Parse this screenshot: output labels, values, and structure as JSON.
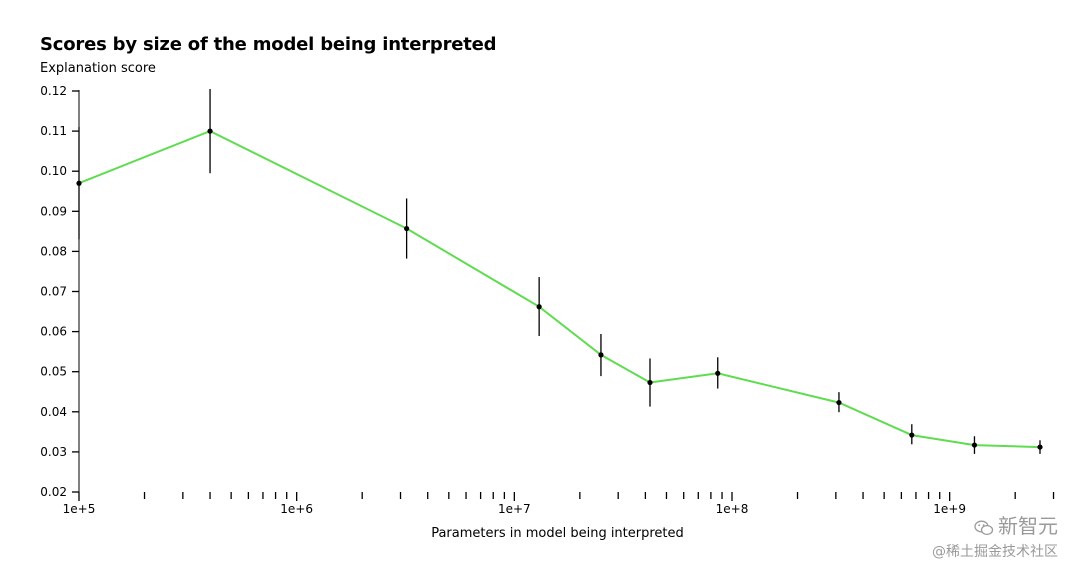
{
  "chart_data": {
    "type": "line",
    "title": "Scores by size of the model being interpreted",
    "ylabel": "Explanation score",
    "xlabel": "Parameters in model being interpreted",
    "x_scale": "log",
    "xlim": [
      100000,
      3000000000
    ],
    "ylim": [
      0.02,
      0.12
    ],
    "y_ticks": [
      "0.02",
      "0.03",
      "0.04",
      "0.05",
      "0.06",
      "0.07",
      "0.08",
      "0.09",
      "0.10",
      "0.11",
      "0.12"
    ],
    "x_tick_labels": [
      {
        "value": 100000,
        "label": "1e+5"
      },
      {
        "value": 1000000,
        "label": "1e+6"
      },
      {
        "value": 10000000,
        "label": "1e+7"
      },
      {
        "value": 100000000,
        "label": "1e+8"
      },
      {
        "value": 1000000000,
        "label": "1e+9"
      }
    ],
    "grid": false,
    "line_color": "#5fdc50",
    "series": [
      {
        "points": [
          {
            "x": 100000,
            "y": 0.097,
            "err_low": 0.083,
            "err_high": 0.111
          },
          {
            "x": 400000,
            "y": 0.11,
            "err_low": 0.0995,
            "err_high": 0.1205
          },
          {
            "x": 3200000,
            "y": 0.0857,
            "err_low": 0.0782,
            "err_high": 0.0932
          },
          {
            "x": 13000000,
            "y": 0.0662,
            "err_low": 0.0589,
            "err_high": 0.0736
          },
          {
            "x": 25000000,
            "y": 0.0542,
            "err_low": 0.0489,
            "err_high": 0.0594
          },
          {
            "x": 42000000,
            "y": 0.0473,
            "err_low": 0.0413,
            "err_high": 0.0533
          },
          {
            "x": 86000000,
            "y": 0.0496,
            "err_low": 0.0458,
            "err_high": 0.0536
          },
          {
            "x": 310000000,
            "y": 0.0423,
            "err_low": 0.0399,
            "err_high": 0.0449
          },
          {
            "x": 670000000,
            "y": 0.0342,
            "err_low": 0.0319,
            "err_high": 0.0369
          },
          {
            "x": 1300000000,
            "y": 0.0317,
            "err_low": 0.0295,
            "err_high": 0.0339
          },
          {
            "x": 2600000000,
            "y": 0.0312,
            "err_low": 0.0295,
            "err_high": 0.0329
          }
        ]
      }
    ]
  },
  "watermark": {
    "brand": "新智元",
    "sub": "@稀土掘金技术社区",
    "icon": "wechat-icon"
  }
}
